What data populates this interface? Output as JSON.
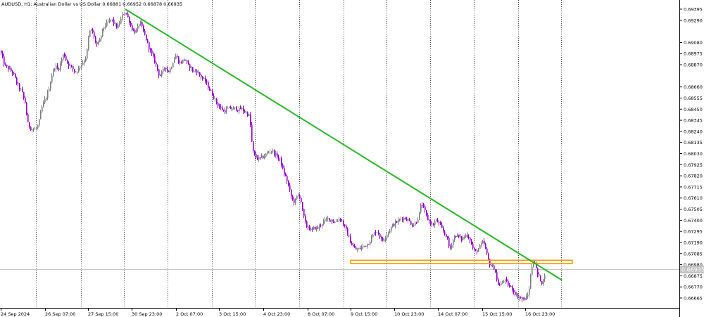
{
  "header": {
    "symbol": "AUDUSD",
    "timeframe": "H1",
    "description": "Australian Dollar vs US Dollar",
    "ohlc": [
      "0.66881",
      "0.66952",
      "0.66878",
      "0.66935"
    ],
    "text": "AUDUSD, H1:  Australian Dollar vs US Dollar  0.66881 0.66952 0.66878 0.66935"
  },
  "colors": {
    "bull_candle": "#808080",
    "bear_candle": "#9400D3",
    "trendline": "#22BB22",
    "support_zone": "#FF9900",
    "current_price_line": "#C0C0C0",
    "grid": "#000000"
  },
  "price_tag": "0.66935",
  "chart_data": {
    "type": "candlestick",
    "instrument": "AUDUSD",
    "timeframe": "H1",
    "y_ticks": [
      "0.69395",
      "0.69290",
      "0.69080",
      "0.68975",
      "0.68870",
      "0.68660",
      "0.68555",
      "0.68450",
      "0.68345",
      "0.68240",
      "0.68135",
      "0.68030",
      "0.67925",
      "0.67820",
      "0.67715",
      "0.67610",
      "0.67505",
      "0.67400",
      "0.67295",
      "0.67190",
      "0.67085",
      "0.66980",
      "0.66875",
      "0.66770",
      "0.66665"
    ],
    "x_ticks": [
      "24 Sep 2024",
      "26 Sep 07:00",
      "27 Sep 15:00",
      "30 Sep 23:00",
      "2 Oct 07:00",
      "3 Oct 15:00",
      "4 Oct 23:00",
      "8 Oct 07:00",
      "9 Oct 15:00",
      "10 Oct 23:00",
      "14 Oct 07:00",
      "15 Oct 15:00",
      "16 Oct 23:00"
    ],
    "ylim": [
      0.6662,
      0.6944
    ],
    "grid_vertical": true,
    "price_path": [
      [
        0,
        0.69
      ],
      [
        6,
        0.6886
      ],
      [
        12,
        0.6883
      ],
      [
        18,
        0.6879
      ],
      [
        24,
        0.6868
      ],
      [
        30,
        0.6862
      ],
      [
        36,
        0.6849
      ],
      [
        38,
        0.6832
      ],
      [
        44,
        0.6826
      ],
      [
        50,
        0.6826
      ],
      [
        54,
        0.683
      ],
      [
        58,
        0.6845
      ],
      [
        62,
        0.6852
      ],
      [
        66,
        0.6858
      ],
      [
        70,
        0.6868
      ],
      [
        74,
        0.688
      ],
      [
        78,
        0.6886
      ],
      [
        82,
        0.6882
      ],
      [
        86,
        0.689
      ],
      [
        90,
        0.6898
      ],
      [
        94,
        0.689
      ],
      [
        98,
        0.6886
      ],
      [
        102,
        0.6884
      ],
      [
        106,
        0.688
      ],
      [
        110,
        0.6882
      ],
      [
        114,
        0.6887
      ],
      [
        118,
        0.689
      ],
      [
        122,
        0.6895
      ],
      [
        126,
        0.6918
      ],
      [
        130,
        0.692
      ],
      [
        134,
        0.691
      ],
      [
        138,
        0.6905
      ],
      [
        142,
        0.6912
      ],
      [
        146,
        0.6922
      ],
      [
        150,
        0.6925
      ],
      [
        154,
        0.6928
      ],
      [
        158,
        0.693
      ],
      [
        162,
        0.6925
      ],
      [
        166,
        0.6922
      ],
      [
        170,
        0.6928
      ],
      [
        174,
        0.6935
      ],
      [
        178,
        0.6937
      ],
      [
        182,
        0.693
      ],
      [
        186,
        0.6922
      ],
      [
        190,
        0.6918
      ],
      [
        194,
        0.692
      ],
      [
        198,
        0.6928
      ],
      [
        202,
        0.692
      ],
      [
        206,
        0.6913
      ],
      [
        210,
        0.6905
      ],
      [
        214,
        0.6898
      ],
      [
        218,
        0.6892
      ],
      [
        222,
        0.6885
      ],
      [
        226,
        0.6876
      ],
      [
        230,
        0.688
      ],
      [
        234,
        0.6886
      ],
      [
        238,
        0.688
      ],
      [
        242,
        0.6884
      ],
      [
        246,
        0.6892
      ],
      [
        250,
        0.6896
      ],
      [
        254,
        0.6888
      ],
      [
        258,
        0.689
      ],
      [
        262,
        0.6893
      ],
      [
        266,
        0.6886
      ],
      [
        270,
        0.6885
      ],
      [
        274,
        0.688
      ],
      [
        278,
        0.6882
      ],
      [
        282,
        0.6878
      ],
      [
        286,
        0.6875
      ],
      [
        290,
        0.6872
      ],
      [
        294,
        0.6868
      ],
      [
        298,
        0.6862
      ],
      [
        302,
        0.6858
      ],
      [
        306,
        0.6852
      ],
      [
        310,
        0.6848
      ],
      [
        314,
        0.6845
      ],
      [
        318,
        0.6843
      ],
      [
        322,
        0.6845
      ],
      [
        326,
        0.6846
      ],
      [
        330,
        0.6845
      ],
      [
        334,
        0.6846
      ],
      [
        338,
        0.6844
      ],
      [
        342,
        0.6846
      ],
      [
        346,
        0.6843
      ],
      [
        350,
        0.6841
      ],
      [
        354,
        0.6838
      ],
      [
        358,
        0.6806
      ],
      [
        362,
        0.68
      ],
      [
        366,
        0.6798
      ],
      [
        370,
        0.6799
      ],
      [
        374,
        0.68
      ],
      [
        378,
        0.6803
      ],
      [
        382,
        0.6805
      ],
      [
        386,
        0.6806
      ],
      [
        390,
        0.6802
      ],
      [
        394,
        0.68
      ],
      [
        398,
        0.6796
      ],
      [
        402,
        0.6785
      ],
      [
        406,
        0.678
      ],
      [
        410,
        0.677
      ],
      [
        414,
        0.676
      ],
      [
        418,
        0.6757
      ],
      [
        422,
        0.6764
      ],
      [
        426,
        0.6762
      ],
      [
        430,
        0.6745
      ],
      [
        434,
        0.6735
      ],
      [
        438,
        0.6733
      ],
      [
        442,
        0.673
      ],
      [
        446,
        0.6733
      ],
      [
        450,
        0.6732
      ],
      [
        454,
        0.6735
      ],
      [
        458,
        0.6738
      ],
      [
        462,
        0.674
      ],
      [
        466,
        0.6742
      ],
      [
        470,
        0.674
      ],
      [
        474,
        0.6738
      ],
      [
        478,
        0.674
      ],
      [
        482,
        0.6742
      ],
      [
        486,
        0.6738
      ],
      [
        490,
        0.6732
      ],
      [
        494,
        0.6725
      ],
      [
        498,
        0.6718
      ],
      [
        502,
        0.6714
      ],
      [
        506,
        0.6712
      ],
      [
        510,
        0.6713
      ],
      [
        514,
        0.6715
      ],
      [
        518,
        0.6716
      ],
      [
        522,
        0.6718
      ],
      [
        526,
        0.6722
      ],
      [
        530,
        0.6727
      ],
      [
        534,
        0.673
      ],
      [
        538,
        0.6727
      ],
      [
        542,
        0.672
      ],
      [
        546,
        0.6724
      ],
      [
        550,
        0.6728
      ],
      [
        554,
        0.6732
      ],
      [
        558,
        0.6736
      ],
      [
        562,
        0.6738
      ],
      [
        566,
        0.674
      ],
      [
        570,
        0.6742
      ],
      [
        574,
        0.6742
      ],
      [
        578,
        0.6741
      ],
      [
        582,
        0.6738
      ],
      [
        586,
        0.6735
      ],
      [
        590,
        0.6738
      ],
      [
        594,
        0.6743
      ],
      [
        598,
        0.6756
      ],
      [
        602,
        0.675
      ],
      [
        606,
        0.6742
      ],
      [
        610,
        0.6738
      ],
      [
        614,
        0.6735
      ],
      [
        618,
        0.674
      ],
      [
        622,
        0.6738
      ],
      [
        626,
        0.6733
      ],
      [
        630,
        0.6728
      ],
      [
        634,
        0.6725
      ],
      [
        638,
        0.6712
      ],
      [
        642,
        0.672
      ],
      [
        646,
        0.6726
      ],
      [
        650,
        0.6725
      ],
      [
        654,
        0.6722
      ],
      [
        658,
        0.6724
      ],
      [
        662,
        0.6726
      ],
      [
        666,
        0.6724
      ],
      [
        670,
        0.6715
      ],
      [
        674,
        0.671
      ],
      [
        678,
        0.6712
      ],
      [
        682,
        0.6716
      ],
      [
        686,
        0.672
      ],
      [
        690,
        0.671
      ],
      [
        694,
        0.67
      ],
      [
        698,
        0.6696
      ],
      [
        702,
        0.6695
      ],
      [
        706,
        0.668
      ],
      [
        710,
        0.6678
      ],
      [
        714,
        0.6684
      ],
      [
        718,
        0.6682
      ],
      [
        722,
        0.6678
      ],
      [
        726,
        0.6676
      ],
      [
        730,
        0.6672
      ],
      [
        734,
        0.6668
      ],
      [
        738,
        0.6667
      ],
      [
        742,
        0.6665
      ],
      [
        746,
        0.6666
      ],
      [
        750,
        0.667
      ],
      [
        754,
        0.6694
      ],
      [
        758,
        0.6704
      ],
      [
        762,
        0.669
      ],
      [
        766,
        0.6685
      ],
      [
        770,
        0.668
      ],
      [
        774,
        0.6693
      ]
    ],
    "trendline": {
      "from": [
        178,
        0.69395
      ],
      "to": [
        798,
        0.66835
      ]
    },
    "support_zone": {
      "from_x": 498,
      "to_x": 813,
      "low": 0.66992,
      "high": 0.67022
    },
    "current_price": 0.66935
  }
}
